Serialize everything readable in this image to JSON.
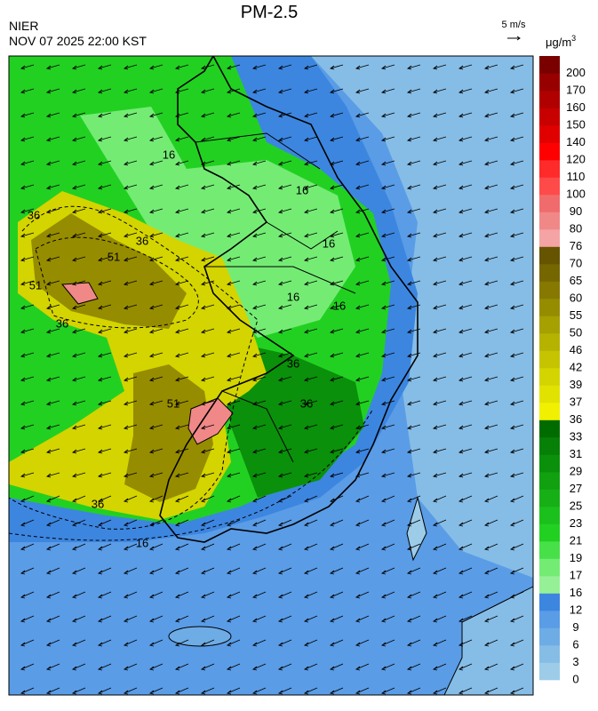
{
  "header": {
    "title": "PM-2.5",
    "agency": "NIER",
    "datetime": "NOV 07 2025 22:00 KST",
    "wind_scale": "5 m/s"
  },
  "colorbar": {
    "unit": "μg/m",
    "unit_exponent": "3",
    "labels": [
      "0",
      "3",
      "6",
      "9",
      "12",
      "16",
      "17",
      "19",
      "21",
      "23",
      "25",
      "27",
      "29",
      "31",
      "33",
      "36",
      "37",
      "39",
      "42",
      "46",
      "50",
      "55",
      "60",
      "65",
      "70",
      "76",
      "80",
      "90",
      "100",
      "110",
      "120",
      "140",
      "150",
      "160",
      "170",
      "200"
    ],
    "colors": [
      "#9ccce8",
      "#86bde6",
      "#6eace6",
      "#5a9ce6",
      "#3c86e0",
      "#96f096",
      "#74ec74",
      "#48e048",
      "#22d022",
      "#1cc01c",
      "#16b016",
      "#10a010",
      "#0a900a",
      "#068006",
      "#006c00",
      "#f0f000",
      "#e2e200",
      "#d4d400",
      "#c6c400",
      "#b6b200",
      "#a6a000",
      "#968c00",
      "#867800",
      "#766600",
      "#665400",
      "#f4a4a4",
      "#f08888",
      "#f06c6c",
      "#ff4a4a",
      "#ff2a2a",
      "#ff0000",
      "#e00000",
      "#c80000",
      "#b00000",
      "#980000",
      "#7a0000"
    ]
  },
  "map": {
    "contour_labels": [
      "36",
      "51",
      "36",
      "51",
      "36",
      "16",
      "51",
      "36",
      "16",
      "36",
      "16",
      "36",
      "16",
      "16",
      "16"
    ]
  }
}
